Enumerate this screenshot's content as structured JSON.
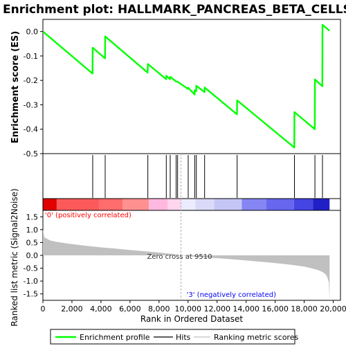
{
  "chart_data": {
    "type": "line",
    "title": "Enrichment plot: HALLMARK_PANCREAS_BETA_CELLS",
    "es_panel": {
      "ylabel": "Enrichment score (ES)",
      "ylim": [
        -0.5,
        0.05
      ],
      "yticks": [
        "0.0",
        "-0.1",
        "-0.2",
        "-0.3",
        "-0.4",
        "-0.5"
      ],
      "ytick_values": [
        0.0,
        -0.1,
        -0.2,
        -0.3,
        -0.4,
        -0.5
      ],
      "series": [
        {
          "name": "Enrichment profile",
          "color": "#00ff00",
          "x": [
            0,
            3420,
            3430,
            4280,
            4290,
            7220,
            7230,
            8490,
            8500,
            8760,
            8770,
            9180,
            9270,
            9280,
            10000,
            10010,
            10450,
            10460,
            10560,
            10570,
            11130,
            11140,
            13370,
            13380,
            17320,
            17330,
            18730,
            18740,
            19250,
            19260,
            19750
          ],
          "y": [
            0.0,
            -0.172,
            -0.066,
            -0.11,
            -0.02,
            -0.168,
            -0.133,
            -0.195,
            -0.181,
            -0.195,
            -0.185,
            -0.205,
            -0.205,
            -0.206,
            -0.235,
            -0.23,
            -0.258,
            -0.24,
            -0.245,
            -0.222,
            -0.248,
            -0.229,
            -0.339,
            -0.282,
            -0.475,
            -0.33,
            -0.4,
            -0.196,
            -0.224,
            0.028,
            0.003
          ]
        }
      ]
    },
    "hits": {
      "name": "Hits",
      "positions": [
        3430,
        4290,
        7230,
        8500,
        8770,
        9180,
        9280,
        10010,
        10460,
        10570,
        11140,
        13380,
        17330,
        18740,
        19260
      ]
    },
    "rank_metric_panel": {
      "ylabel": "Ranked list metric (Signal2Noise)",
      "xlabel": "Rank in Ordered Dataset",
      "ylim": [
        -1.75,
        1.75
      ],
      "yticks": [
        "1.5",
        "1.0",
        "0.5",
        "0.0",
        "-0.5",
        "-1.0",
        "-1.5"
      ],
      "ytick_values": [
        1.5,
        1.0,
        0.5,
        0.0,
        -0.5,
        -1.0,
        -1.5
      ],
      "xlim": [
        0,
        20500
      ],
      "xticks": [
        "0",
        "2,000",
        "4,000",
        "6,000",
        "8,000",
        "10,000",
        "12,000",
        "14,000",
        "16,000",
        "18,000",
        "20,000"
      ],
      "xtick_values": [
        0,
        2000,
        4000,
        6000,
        8000,
        10000,
        12000,
        14000,
        16000,
        18000,
        20000
      ],
      "zero_cross_label": "Zero cross at 9510",
      "zero_cross": 9510,
      "total": 19750,
      "metric_profile": {
        "x": [
          0,
          100,
          500,
          1000,
          2000,
          3000,
          4000,
          5000,
          6000,
          7000,
          8000,
          9000,
          9510,
          10000,
          11000,
          12000,
          13000,
          14000,
          15000,
          16000,
          17000,
          18000,
          18500,
          19000,
          19300,
          19500,
          19600,
          19700,
          19750
        ],
        "y": [
          1.0,
          0.7,
          0.58,
          0.52,
          0.44,
          0.37,
          0.31,
          0.26,
          0.21,
          0.16,
          0.11,
          0.05,
          0.0,
          -0.03,
          -0.07,
          -0.11,
          -0.15,
          -0.2,
          -0.25,
          -0.3,
          -0.36,
          -0.44,
          -0.5,
          -0.58,
          -0.66,
          -0.75,
          -0.86,
          -1.05,
          -1.75
        ]
      },
      "positive_label": "'0' (positively correlated)",
      "negative_label": "'3' (negatively correlated)",
      "positive_color": "#ff0000",
      "negative_color": "#0000ff"
    },
    "heat_bar": {
      "segments": [
        {
          "end": 950,
          "color": "#e00000"
        },
        {
          "end": 3900,
          "color": "#fc5a5a"
        },
        {
          "end": 5500,
          "color": "#ff6c6c"
        },
        {
          "end": 7300,
          "color": "#ff9090"
        },
        {
          "end": 8600,
          "color": "#ffb8e0"
        },
        {
          "end": 9510,
          "color": "#ffd6ee"
        },
        {
          "end": 10500,
          "color": "#ecebff"
        },
        {
          "end": 11800,
          "color": "#dadaf8"
        },
        {
          "end": 13700,
          "color": "#c6c6f6"
        },
        {
          "end": 15400,
          "color": "#8585f3"
        },
        {
          "end": 17300,
          "color": "#6666ef"
        },
        {
          "end": 18600,
          "color": "#4545e3"
        },
        {
          "end": 19750,
          "color": "#2020c6"
        }
      ]
    },
    "legend": {
      "position": "bottom",
      "entries": [
        {
          "label": "Enrichment profile",
          "color": "#00ff00"
        },
        {
          "label": "Hits",
          "color": "#000000"
        },
        {
          "label": "Ranking metric scores",
          "color": "#c0c0c0"
        }
      ]
    }
  }
}
